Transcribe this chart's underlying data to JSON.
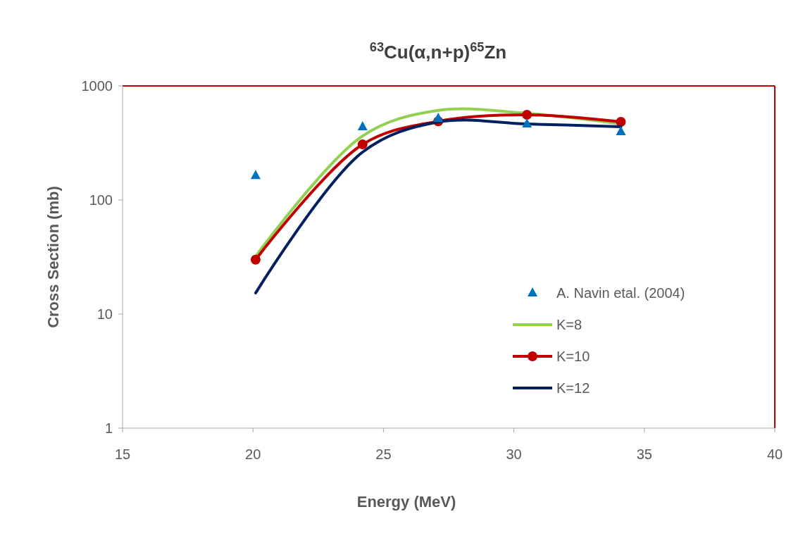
{
  "chart_data": {
    "type": "line",
    "title": "$^{63}$Cu(α,n+p)$^{65}$Zn",
    "xlabel": "Energy (MeV)",
    "ylabel": "Cross Section (mb)",
    "xlim": [
      15,
      40
    ],
    "xticks": [
      15,
      20,
      25,
      30,
      35,
      40
    ],
    "ylim": [
      1,
      1000
    ],
    "yticks": [
      1,
      10,
      100,
      1000
    ],
    "log": "y",
    "grid": false,
    "legend": "bottom right",
    "series": [
      {
        "name": "A. Navin etal. (2004)",
        "type": "scatter",
        "marker": "triangle",
        "color": "#0070c0",
        "x": [
          20.1,
          24.2,
          27.1,
          30.5,
          34.1
        ],
        "values": [
          164,
          438,
          520,
          464,
          397
        ]
      },
      {
        "name": "K=8",
        "marker": "none",
        "color": "#92d050",
        "x": [
          20.1,
          24.2,
          27.1,
          30.5,
          34.1
        ],
        "values": [
          32,
          364,
          610,
          575,
          464
        ]
      },
      {
        "name": "K=10",
        "marker": "circle",
        "color": "#c00000",
        "x": [
          20.1,
          24.2,
          27.1,
          30.5,
          34.1
        ],
        "values": [
          30,
          307,
          490,
          558,
          484
        ]
      },
      {
        "name": "K=12",
        "marker": "none",
        "color": "#002060",
        "x": [
          20.1,
          24.2,
          27.1,
          30.5,
          34.1
        ],
        "values": [
          15.3,
          263,
          483,
          464,
          438
        ]
      }
    ]
  }
}
